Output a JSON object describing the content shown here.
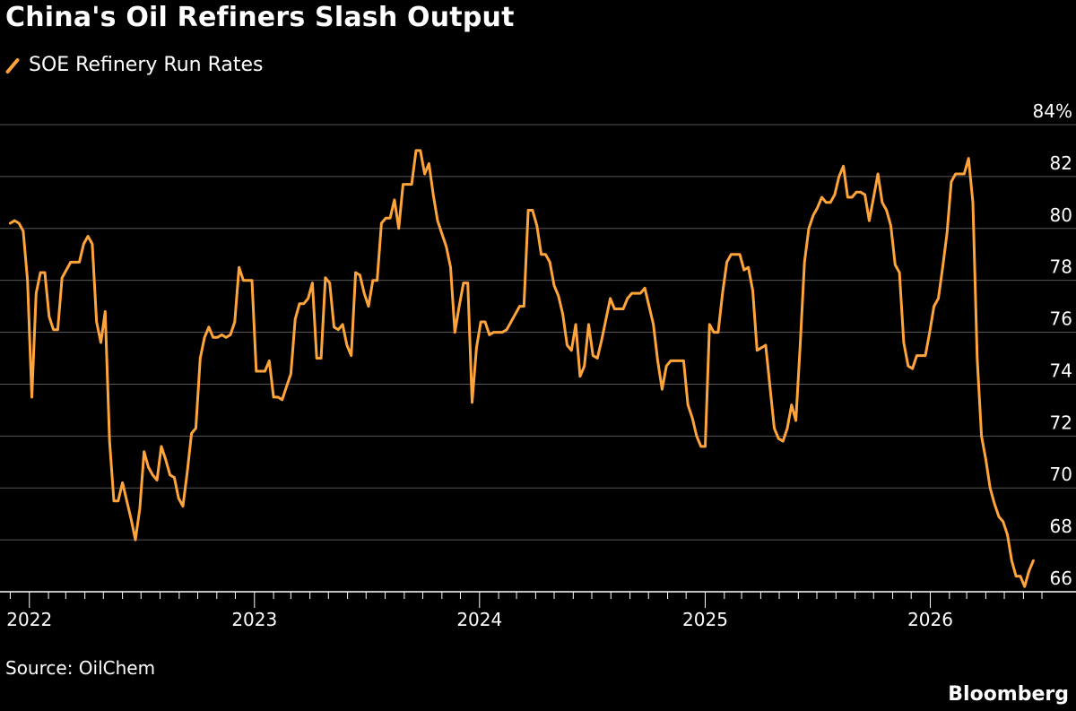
{
  "title": "China's Oil Refiners Slash Output",
  "source": "Source: OilChem",
  "brand": "Bloomberg",
  "colors": {
    "line": "#ffa43a",
    "background": "#000000",
    "grid": "#555555",
    "text": "#ffffff"
  },
  "legend_icon": "diagonal-slash-swatch",
  "chart_data": {
    "type": "line",
    "ylim": [
      65,
      84
    ],
    "y_ticks": [
      84,
      82,
      80,
      78,
      76,
      74,
      72,
      70,
      68,
      66
    ],
    "y_tick_labels": [
      "84%",
      "82",
      "80",
      "78",
      "76",
      "74",
      "72",
      "70",
      "68",
      "66"
    ],
    "x_tick_labels": [
      "2022",
      "2023",
      "2024",
      "2025",
      "2026"
    ],
    "xlim": [
      "2021-11-26",
      "2026-07-01"
    ],
    "grid": true,
    "legend_position": "top-left",
    "series": [
      {
        "name": "SOE Refinery Run Rates",
        "x": [
          "2021-12-01",
          "2021-12-08",
          "2021-12-15",
          "2021-12-22",
          "2021-12-29",
          "2022-01-05",
          "2022-01-12",
          "2022-01-19",
          "2022-01-26",
          "2022-02-02",
          "2022-02-09",
          "2022-02-16",
          "2022-02-23",
          "2022-03-02",
          "2022-03-09",
          "2022-03-16",
          "2022-03-23",
          "2022-03-30",
          "2022-04-06",
          "2022-04-13",
          "2022-04-20",
          "2022-04-27",
          "2022-05-04",
          "2022-05-11",
          "2022-05-18",
          "2022-05-25",
          "2022-06-01",
          "2022-06-08",
          "2022-06-15",
          "2022-06-22",
          "2022-06-29",
          "2022-07-06",
          "2022-07-13",
          "2022-07-20",
          "2022-07-27",
          "2022-08-03",
          "2022-08-10",
          "2022-08-17",
          "2022-08-24",
          "2022-08-31",
          "2022-09-07",
          "2022-09-14",
          "2022-09-21",
          "2022-09-28",
          "2022-10-05",
          "2022-10-12",
          "2022-10-19",
          "2022-10-26",
          "2022-11-02",
          "2022-11-09",
          "2022-11-16",
          "2022-11-23",
          "2022-11-30",
          "2022-12-07",
          "2022-12-14",
          "2022-12-21",
          "2022-12-28",
          "2023-01-04",
          "2023-01-11",
          "2023-01-18",
          "2023-01-25",
          "2023-02-01",
          "2023-02-08",
          "2023-02-15",
          "2023-02-22",
          "2023-03-01",
          "2023-03-08",
          "2023-03-15",
          "2023-03-22",
          "2023-03-29",
          "2023-04-05",
          "2023-04-12",
          "2023-04-19",
          "2023-04-26",
          "2023-05-03",
          "2023-05-10",
          "2023-05-17",
          "2023-05-24",
          "2023-05-31",
          "2023-06-07",
          "2023-06-14",
          "2023-06-21",
          "2023-06-28",
          "2023-07-05",
          "2023-07-12",
          "2023-07-19",
          "2023-07-26",
          "2023-08-02",
          "2023-08-09",
          "2023-08-16",
          "2023-08-23",
          "2023-08-30",
          "2023-09-06",
          "2023-09-13",
          "2023-09-20",
          "2023-09-27",
          "2023-10-04",
          "2023-10-11",
          "2023-10-18",
          "2023-10-25",
          "2023-11-01",
          "2023-11-08",
          "2023-11-15",
          "2023-11-22",
          "2023-11-29",
          "2023-12-06",
          "2023-12-13",
          "2023-12-20",
          "2023-12-27",
          "2024-01-03",
          "2024-01-10",
          "2024-01-17",
          "2024-01-24",
          "2024-01-31",
          "2024-02-07",
          "2024-02-14",
          "2024-02-21",
          "2024-02-28",
          "2024-03-06",
          "2024-03-13",
          "2024-03-20",
          "2024-03-27",
          "2024-04-03",
          "2024-04-10",
          "2024-04-17",
          "2024-04-24",
          "2024-05-01",
          "2024-05-08",
          "2024-05-15",
          "2024-05-22",
          "2024-05-29",
          "2024-06-05",
          "2024-06-12",
          "2024-06-19",
          "2024-06-26",
          "2024-07-03",
          "2024-07-10",
          "2024-07-17",
          "2024-07-24",
          "2024-07-31",
          "2024-08-07",
          "2024-08-14",
          "2024-08-21",
          "2024-08-28",
          "2024-09-04",
          "2024-09-11",
          "2024-09-18",
          "2024-09-25",
          "2024-10-02",
          "2024-10-09",
          "2024-10-16",
          "2024-10-23",
          "2024-10-30",
          "2024-11-06",
          "2024-11-13",
          "2024-11-20",
          "2024-11-27",
          "2024-12-04",
          "2024-12-11",
          "2024-12-18",
          "2024-12-25",
          "2025-01-01",
          "2025-01-08",
          "2025-01-15",
          "2025-01-22",
          "2025-01-29",
          "2025-02-05",
          "2025-02-12",
          "2025-02-19",
          "2025-02-26",
          "2025-03-05",
          "2025-03-12",
          "2025-03-19",
          "2025-03-26",
          "2025-04-02",
          "2025-04-09",
          "2025-04-16",
          "2025-04-23",
          "2025-04-30",
          "2025-05-07",
          "2025-05-14",
          "2025-05-21",
          "2025-05-28",
          "2025-06-04",
          "2025-06-11",
          "2025-06-18",
          "2025-06-25",
          "2025-07-02",
          "2025-07-09",
          "2025-07-16",
          "2025-07-23",
          "2025-07-30",
          "2025-08-06",
          "2025-08-13",
          "2025-08-20",
          "2025-08-27",
          "2025-09-03",
          "2025-09-10",
          "2025-09-17",
          "2025-09-24",
          "2025-10-01",
          "2025-10-08",
          "2025-10-15",
          "2025-10-22",
          "2025-10-29",
          "2025-11-05",
          "2025-11-12",
          "2025-11-19",
          "2025-11-26",
          "2025-12-03",
          "2025-12-10",
          "2025-12-17",
          "2025-12-24",
          "2025-12-31",
          "2026-01-07",
          "2026-01-14",
          "2026-01-21",
          "2026-01-28",
          "2026-02-04",
          "2026-02-11",
          "2026-02-18",
          "2026-02-25",
          "2026-03-04",
          "2026-03-11",
          "2026-03-18",
          "2026-03-25",
          "2026-04-01",
          "2026-04-08",
          "2026-04-15",
          "2026-04-22",
          "2026-04-29",
          "2026-05-06",
          "2026-05-13",
          "2026-05-20",
          "2026-05-27",
          "2026-06-03",
          "2026-06-10",
          "2026-06-17"
        ],
        "y": [
          80.2,
          80.3,
          80.2,
          79.9,
          78.0,
          73.5,
          77.5,
          78.3,
          78.3,
          76.6,
          76.1,
          76.1,
          78.1,
          78.4,
          78.7,
          78.7,
          78.7,
          79.4,
          79.7,
          79.4,
          76.4,
          75.6,
          76.8,
          71.8,
          69.5,
          69.5,
          70.2,
          69.5,
          68.8,
          68.0,
          69.2,
          71.4,
          70.8,
          70.5,
          70.3,
          71.6,
          71.1,
          70.5,
          70.4,
          69.6,
          69.3,
          70.6,
          72.1,
          72.3,
          75.0,
          75.8,
          76.2,
          75.8,
          75.8,
          75.9,
          75.8,
          75.9,
          76.4,
          78.5,
          78.0,
          78.0,
          78.0,
          74.5,
          74.5,
          74.5,
          74.9,
          73.5,
          73.5,
          73.4,
          73.9,
          74.4,
          76.5,
          77.1,
          77.1,
          77.3,
          77.9,
          75.0,
          75.0,
          78.1,
          77.9,
          76.2,
          76.1,
          76.3,
          75.5,
          75.1,
          78.3,
          78.2,
          77.5,
          77.0,
          78.0,
          78.0,
          80.2,
          80.4,
          80.4,
          81.1,
          80.0,
          81.7,
          81.7,
          81.7,
          83.0,
          83.0,
          82.1,
          82.5,
          81.3,
          80.3,
          79.8,
          79.3,
          78.5,
          76.0,
          77.0,
          77.9,
          77.9,
          73.3,
          75.4,
          76.4,
          76.4,
          75.9,
          76.0,
          76.0,
          76.0,
          76.1,
          76.4,
          76.7,
          77.0,
          77.0,
          80.7,
          80.7,
          80.1,
          79.0,
          79.0,
          78.7,
          77.8,
          77.4,
          76.7,
          75.5,
          75.3,
          76.3,
          74.3,
          74.7,
          76.3,
          75.1,
          75.0,
          75.7,
          76.5,
          77.3,
          76.9,
          76.9,
          76.9,
          77.3,
          77.5,
          77.5,
          77.5,
          77.7,
          77.0,
          76.3,
          74.9,
          73.8,
          74.7,
          74.9,
          74.9,
          74.9,
          74.9,
          73.2,
          72.7,
          72.0,
          71.6,
          71.6,
          76.3,
          76.0,
          76.0,
          77.5,
          78.7,
          79.0,
          79.0,
          79.0,
          78.4,
          78.5,
          77.6,
          75.3,
          75.4,
          75.5,
          73.9,
          72.3,
          71.9,
          71.8,
          72.3,
          73.2,
          72.6,
          75.5,
          78.7,
          80.0,
          80.5,
          80.8,
          81.2,
          81.0,
          81.0,
          81.3,
          82.0,
          82.4,
          81.2,
          81.2,
          81.4,
          81.4,
          81.3,
          80.3,
          81.2,
          82.1,
          81.0,
          80.7,
          80.1,
          78.6,
          78.3,
          75.6,
          74.7,
          74.6,
          75.1,
          75.1,
          75.1,
          76.0,
          77.0,
          77.3,
          78.5,
          79.8,
          81.8,
          82.1,
          82.1,
          82.1,
          82.7,
          81.0,
          75.0,
          72.0,
          71.1,
          70.0,
          69.4,
          68.9,
          68.7,
          68.2,
          67.2,
          66.6,
          66.6,
          66.2,
          66.8,
          67.2
        ]
      }
    ]
  }
}
